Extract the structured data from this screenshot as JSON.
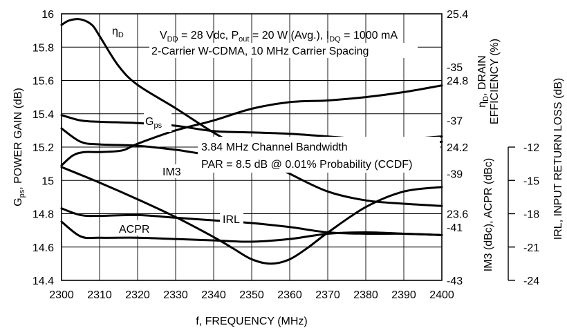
{
  "chart_data": {
    "type": "line",
    "xlabel": "f, FREQUENCY (MHz)",
    "x_ticks": [
      "2300",
      "2310",
      "2320",
      "2330",
      "2340",
      "2350",
      "2360",
      "2370",
      "2380",
      "2390",
      "2400"
    ],
    "xlim": [
      2300,
      2400
    ],
    "grid": true,
    "axes": {
      "left": {
        "label_main": "G",
        "label_sub": "ps",
        "label_rest": ", POWER GAIN (dB)",
        "ylim": [
          14.4,
          16.0
        ],
        "ticks": [
          "14.4",
          "14.6",
          "14.8",
          "15",
          "15.2",
          "15.4",
          "15.6",
          "15.8",
          "16"
        ]
      },
      "right_upper": {
        "label_line1_main": "η",
        "label_line1_sub": "D",
        "label_line1_rest": ", DRAIN",
        "label_line2": "EFFICIENCY (%)",
        "ylim": [
          23.0,
          25.4
        ],
        "ticks": [
          "23.6",
          "24.2",
          "24.8",
          "25.4"
        ]
      },
      "right_lower": {
        "label": "IM3 (dBc), ACPR (dBc)",
        "ylim": [
          -43,
          -33
        ],
        "ticks": [
          "-43",
          "-41",
          "-39",
          "-37",
          "-35"
        ]
      },
      "far_right": {
        "label": "IRL, INPUT RETURN LOSS (dB)",
        "ylim": [
          -24,
          -12
        ],
        "ticks": [
          "-12",
          "-15",
          "-18",
          "-21",
          "-24"
        ]
      }
    },
    "annotations": {
      "cond_line1": {
        "v_main": "V",
        "v_sub": "DD",
        "v_rest": " = 28 Vdc, P",
        "p_sub": "out",
        "p_rest": " = 20 W (Avg.), I",
        "i_sub": "DQ",
        "i_rest": " = 1000 mA"
      },
      "cond_line2": "2-Carrier W-CDMA, 10 MHz Carrier Spacing",
      "bw_line1": "3.84 MHz Channel Bandwidth",
      "bw_line2": "PAR = 8.5 dB @ 0.01% Probability (CCDF)"
    },
    "series": [
      {
        "name": "ηD",
        "label_main": "η",
        "label_sub": "D",
        "axis": "right_upper",
        "x": [
          2300,
          2302,
          2305,
          2308,
          2310,
          2315,
          2320,
          2330,
          2340,
          2350,
          2360,
          2370,
          2380,
          2390,
          2400
        ],
        "y": [
          25.3,
          25.34,
          25.35,
          25.3,
          25.2,
          24.93,
          24.76,
          24.55,
          24.33,
          24.14,
          23.96,
          23.8,
          23.72,
          23.69,
          23.67
        ]
      },
      {
        "name": "Gps",
        "label_main": "G",
        "label_sub": "ps",
        "axis": "left",
        "x": [
          2300,
          2303,
          2306,
          2310,
          2316,
          2320,
          2330,
          2340,
          2350,
          2360,
          2370,
          2380,
          2390,
          2400
        ],
        "y": [
          15.09,
          15.15,
          15.17,
          15.17,
          15.18,
          15.22,
          15.3,
          15.36,
          15.43,
          15.47,
          15.48,
          15.5,
          15.53,
          15.57
        ]
      },
      {
        "name": "IRL",
        "axis": "far_right",
        "x": [
          2300,
          2310,
          2320,
          2330,
          2340,
          2345,
          2350,
          2355,
          2360,
          2365,
          2370,
          2380,
          2390,
          2400
        ],
        "y": [
          -13.8,
          -15.2,
          -16.7,
          -18.3,
          -20.1,
          -21.1,
          -22.1,
          -22.5,
          -22.1,
          -21.0,
          -19.7,
          -17.4,
          -16.0,
          -15.6
        ]
      },
      {
        "name": "IM3",
        "axis": "right_lower",
        "x": [
          2300,
          2305,
          2310,
          2320,
          2330,
          2340,
          2350,
          2360,
          2370,
          2380,
          2390,
          2400
        ],
        "y": [
          -37.3,
          -37.8,
          -37.9,
          -37.95,
          -38.1,
          -38.3,
          -38.3,
          -38.35,
          -38.2,
          -38.0,
          -37.9,
          -37.8
        ]
      },
      {
        "name": "IM3 (2)",
        "axis": "right_lower",
        "x": [
          2300,
          2305,
          2310,
          2320,
          2330,
          2340,
          2350,
          2360,
          2370,
          2380,
          2390,
          2400
        ],
        "y": [
          -36.8,
          -37.0,
          -37.05,
          -37.1,
          -37.2,
          -37.4,
          -37.45,
          -37.5,
          -37.6,
          -37.7,
          -37.7,
          -37.6
        ]
      },
      {
        "name": "ACPR",
        "axis": "right_lower",
        "x": [
          2300,
          2305,
          2310,
          2320,
          2330,
          2340,
          2350,
          2360,
          2370,
          2380,
          2390,
          2400
        ],
        "y": [
          -40.3,
          -40.55,
          -40.58,
          -40.55,
          -40.65,
          -40.75,
          -40.85,
          -41.0,
          -41.2,
          -41.25,
          -41.25,
          -41.3
        ]
      },
      {
        "name": "ACPR (2)",
        "axis": "right_lower",
        "x": [
          2300,
          2305,
          2310,
          2320,
          2330,
          2340,
          2350,
          2360,
          2370,
          2380,
          2390,
          2400
        ],
        "y": [
          -40.8,
          -41.35,
          -41.4,
          -41.4,
          -41.45,
          -41.5,
          -41.55,
          -41.45,
          -41.25,
          -41.2,
          -41.25,
          -41.3
        ]
      }
    ]
  }
}
